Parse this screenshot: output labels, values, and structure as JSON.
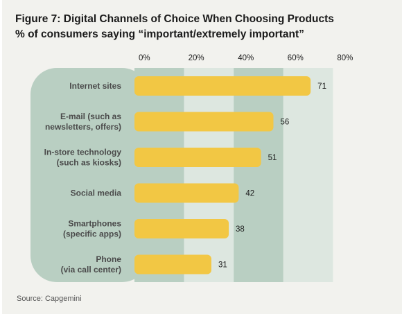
{
  "chart_data": {
    "type": "bar",
    "orientation": "horizontal",
    "title": "Figure 7: Digital Channels of Choice When Choosing Products",
    "subtitle": "% of consumers saying “important/extremely important”",
    "categories": [
      [
        "Internet sites"
      ],
      [
        "E-mail (such as",
        "newsletters, offers)"
      ],
      [
        "In-store technology",
        "(such as kiosks)"
      ],
      [
        "Social media"
      ],
      [
        "Smartphones",
        "(specific apps)"
      ],
      [
        "Phone",
        "(via call center)"
      ]
    ],
    "values": [
      71,
      56,
      51,
      42,
      38,
      31
    ],
    "data_labels": [
      "71",
      "56",
      "51",
      "42",
      "38",
      "31"
    ],
    "x_ticks": [
      0,
      20,
      40,
      60,
      80
    ],
    "x_tick_labels": [
      "0%",
      "20%",
      "40%",
      "60%",
      "80%"
    ],
    "xlim": [
      0,
      80
    ],
    "grid": "alternating column bands",
    "legend": "none",
    "source": "Source: Capgemini"
  },
  "colors": {
    "bar": "#f2c744",
    "band_dark": "#b9cfc2",
    "band_light": "#dde7e0",
    "label_panel": "#b9cfc2",
    "background": "#f2f2ee",
    "category_text": "#4a4a4a",
    "value_text": "#1a1a1a"
  }
}
